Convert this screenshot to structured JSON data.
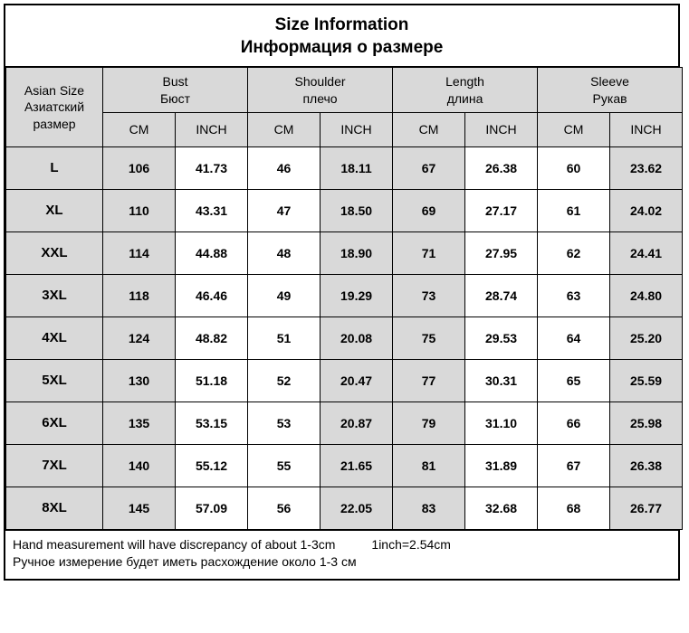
{
  "title": {
    "en": "Size Information",
    "ru": "Информация о размере"
  },
  "headers": {
    "size": {
      "en": "Asian Size",
      "ru": "Азиатский размер"
    },
    "measures": [
      {
        "en": "Bust",
        "ru": "Бюст"
      },
      {
        "en": "Shoulder",
        "ru": "плечо"
      },
      {
        "en": "Length",
        "ru": "длина"
      },
      {
        "en": "Sleeve",
        "ru": "Рукав"
      }
    ],
    "unit_cm": "CM",
    "unit_in": "INCH"
  },
  "rows": [
    {
      "size": "L",
      "bust_cm": "106",
      "bust_in": "41.73",
      "sh_cm": "46",
      "sh_in": "18.11",
      "len_cm": "67",
      "len_in": "26.38",
      "sl_cm": "60",
      "sl_in": "23.62"
    },
    {
      "size": "XL",
      "bust_cm": "110",
      "bust_in": "43.31",
      "sh_cm": "47",
      "sh_in": "18.50",
      "len_cm": "69",
      "len_in": "27.17",
      "sl_cm": "61",
      "sl_in": "24.02"
    },
    {
      "size": "XXL",
      "bust_cm": "114",
      "bust_in": "44.88",
      "sh_cm": "48",
      "sh_in": "18.90",
      "len_cm": "71",
      "len_in": "27.95",
      "sl_cm": "62",
      "sl_in": "24.41"
    },
    {
      "size": "3XL",
      "bust_cm": "118",
      "bust_in": "46.46",
      "sh_cm": "49",
      "sh_in": "19.29",
      "len_cm": "73",
      "len_in": "28.74",
      "sl_cm": "63",
      "sl_in": "24.80"
    },
    {
      "size": "4XL",
      "bust_cm": "124",
      "bust_in": "48.82",
      "sh_cm": "51",
      "sh_in": "20.08",
      "len_cm": "75",
      "len_in": "29.53",
      "sl_cm": "64",
      "sl_in": "25.20"
    },
    {
      "size": "5XL",
      "bust_cm": "130",
      "bust_in": "51.18",
      "sh_cm": "52",
      "sh_in": "20.47",
      "len_cm": "77",
      "len_in": "30.31",
      "sl_cm": "65",
      "sl_in": "25.59"
    },
    {
      "size": "6XL",
      "bust_cm": "135",
      "bust_in": "53.15",
      "sh_cm": "53",
      "sh_in": "20.87",
      "len_cm": "79",
      "len_in": "31.10",
      "sl_cm": "66",
      "sl_in": "25.98"
    },
    {
      "size": "7XL",
      "bust_cm": "140",
      "bust_in": "55.12",
      "sh_cm": "55",
      "sh_in": "21.65",
      "len_cm": "81",
      "len_in": "31.89",
      "sl_cm": "67",
      "sl_in": "26.38"
    },
    {
      "size": "8XL",
      "bust_cm": "145",
      "bust_in": "57.09",
      "sh_cm": "56",
      "sh_in": "22.05",
      "len_cm": "83",
      "len_in": "32.68",
      "sl_cm": "68",
      "sl_in": "26.77"
    }
  ],
  "footer": {
    "line1a": "Hand measurement will have discrepancy of about 1-3cm",
    "line1b": "1inch=2.54cm",
    "line2": "Ручное измерение будет иметь расхождение около 1-3 см"
  },
  "layout": {
    "col_size_w": 107,
    "col_data_w": 80,
    "grey_bg": "#d9d9d9",
    "grey_col_indices": [
      1,
      4,
      5,
      8
    ]
  }
}
